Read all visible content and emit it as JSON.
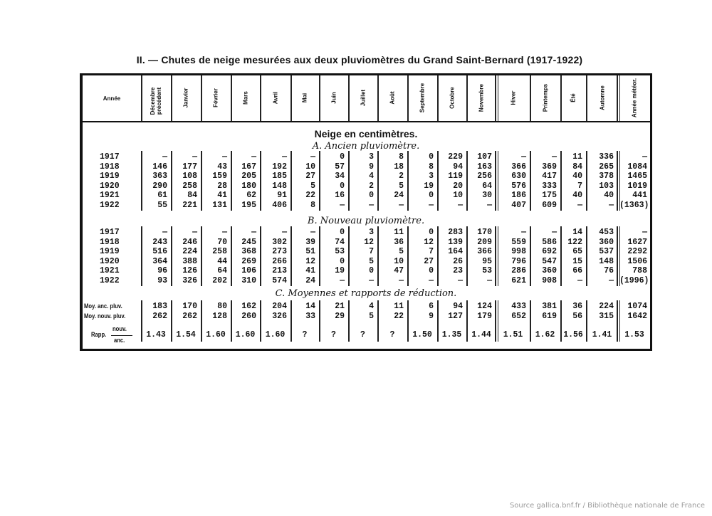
{
  "title": "II. — Chutes de neige mesurées aux deux pluviomètres du Grand Saint-Bernard (1917-1922)",
  "columns": [
    "Année",
    "Décembre précédent",
    "Janvier",
    "Février",
    "Mars",
    "Avril",
    "Mai",
    "Juin",
    "Juillet",
    "Août",
    "Septembre",
    "Octobre",
    "Novembre",
    "Hiver",
    "Printemps",
    "Été",
    "Automne",
    "Année météor."
  ],
  "section_title": "Neige en centimètres.",
  "sections": [
    {
      "heading": "A. Ancien pluviomètre.",
      "rows": [
        [
          "1917",
          "—",
          "—",
          "—",
          "—",
          "—",
          "—",
          "0",
          "3",
          "8",
          "0",
          "229",
          "107",
          "—",
          "—",
          "11",
          "336",
          "—"
        ],
        [
          "1918",
          "146",
          "177",
          "43",
          "167",
          "192",
          "10",
          "57",
          "9",
          "18",
          "8",
          "94",
          "163",
          "366",
          "369",
          "84",
          "265",
          "1084"
        ],
        [
          "1919",
          "363",
          "108",
          "159",
          "205",
          "185",
          "27",
          "34",
          "4",
          "2",
          "3",
          "119",
          "256",
          "630",
          "417",
          "40",
          "378",
          "1465"
        ],
        [
          "1920",
          "290",
          "258",
          "28",
          "180",
          "148",
          "5",
          "0",
          "2",
          "5",
          "19",
          "20",
          "64",
          "576",
          "333",
          "7",
          "103",
          "1019"
        ],
        [
          "1921",
          "61",
          "84",
          "41",
          "62",
          "91",
          "22",
          "16",
          "0",
          "24",
          "0",
          "10",
          "30",
          "186",
          "175",
          "40",
          "40",
          "441"
        ],
        [
          "1922",
          "55",
          "221",
          "131",
          "195",
          "406",
          "8",
          "—",
          "—",
          "—",
          "—",
          "—",
          "—",
          "407",
          "609",
          "—",
          "—",
          "(1363)"
        ]
      ]
    },
    {
      "heading": "B. Nouveau pluviomètre.",
      "rows": [
        [
          "1917",
          "—",
          "—",
          "—",
          "—",
          "—",
          "—",
          "0",
          "3",
          "11",
          "0",
          "283",
          "170",
          "—",
          "—",
          "14",
          "453",
          "—"
        ],
        [
          "1918",
          "243",
          "246",
          "70",
          "245",
          "302",
          "39",
          "74",
          "12",
          "36",
          "12",
          "139",
          "209",
          "559",
          "586",
          "122",
          "360",
          "1627"
        ],
        [
          "1919",
          "516",
          "224",
          "258",
          "368",
          "273",
          "51",
          "53",
          "7",
          "5",
          "7",
          "164",
          "366",
          "998",
          "692",
          "65",
          "537",
          "2292"
        ],
        [
          "1920",
          "364",
          "388",
          "44",
          "269",
          "266",
          "12",
          "0",
          "5",
          "10",
          "27",
          "26",
          "95",
          "796",
          "547",
          "15",
          "148",
          "1506"
        ],
        [
          "1921",
          "96",
          "126",
          "64",
          "106",
          "213",
          "41",
          "19",
          "0",
          "47",
          "0",
          "23",
          "53",
          "286",
          "360",
          "66",
          "76",
          "788"
        ],
        [
          "1922",
          "93",
          "326",
          "202",
          "310",
          "574",
          "24",
          "—",
          "—",
          "—",
          "—",
          "—",
          "—",
          "621",
          "908",
          "—",
          "—",
          "(1996)"
        ]
      ]
    },
    {
      "heading": "C. Moyennes et rapports de réduction.",
      "rows": [
        [
          "Moy. anc. pluv.",
          "183",
          "170",
          "80",
          "162",
          "204",
          "14",
          "21",
          "4",
          "11",
          "6",
          "94",
          "124",
          "433",
          "381",
          "36",
          "224",
          "1074"
        ],
        [
          "Moy. nouv. pluv.",
          "262",
          "262",
          "128",
          "260",
          "326",
          "33",
          "29",
          "5",
          "22",
          "9",
          "127",
          "179",
          "652",
          "619",
          "56",
          "315",
          "1642"
        ]
      ],
      "ratio": {
        "label": "Rapp.",
        "numerator": "nouv.",
        "denominator": "anc.",
        "values": [
          "1.43",
          "1.54",
          "1.60",
          "1.60",
          "1.60",
          "?",
          "?",
          "?",
          "?",
          "1.50",
          "1.35",
          "1.44",
          "1.51",
          "1.62",
          "1.56",
          "1.41",
          "1.53"
        ]
      }
    }
  ],
  "footer": "Source gallica.bnf.fr / Bibliothèque nationale de France"
}
